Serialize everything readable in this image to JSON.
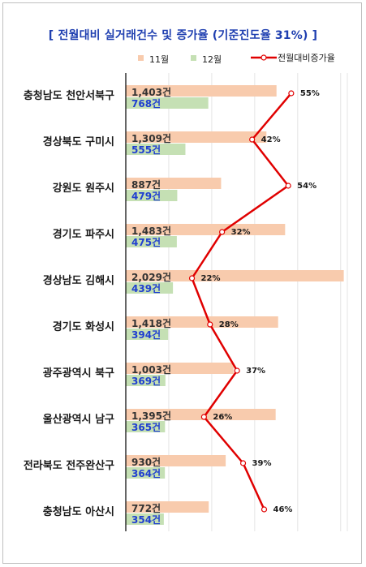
{
  "title": "[ 전월대비 실거래건수 및 증가율 (기준진도율 31%) ]",
  "colors": {
    "bar11": "#f8cbad",
    "bar12": "#c5e0b4",
    "line": "#e00000",
    "title": "#1f3fb0",
    "label12": "#1f3fd0"
  },
  "chart_data": {
    "type": "bar",
    "title": "[ 전월대비 실거래건수 및 증가율 (기준진도율 31%) ]",
    "orientation": "horizontal",
    "categories": [
      "충청남도 천안서북구",
      "경상북도 구미시",
      "강원도 원주시",
      "경기도 파주시",
      "경상남도 김해시",
      "경기도 화성시",
      "광주광역시 북구",
      "울산광역시 남구",
      "전라북도 전주완산구",
      "충청남도 아산시"
    ],
    "series": [
      {
        "name": "11월",
        "values": [
          1403,
          1309,
          887,
          1483,
          2029,
          1418,
          1003,
          1395,
          930,
          772
        ],
        "labels": [
          "1,403건",
          "1,309건",
          "887건",
          "1,483건",
          "2,029건",
          "1,418건",
          "1,003건",
          "1,395건",
          "930건",
          "772건"
        ]
      },
      {
        "name": "12월",
        "values": [
          768,
          555,
          479,
          475,
          439,
          394,
          369,
          365,
          364,
          354
        ],
        "labels": [
          "768건",
          "555건",
          "479건",
          "475건",
          "439건",
          "394건",
          "369건",
          "365건",
          "364건",
          "354건"
        ]
      },
      {
        "name": "전월대비증가율",
        "type": "line",
        "values": [
          55,
          42,
          54,
          32,
          22,
          28,
          37,
          26,
          39,
          46
        ],
        "labels": [
          "55%",
          "42%",
          "54%",
          "32%",
          "22%",
          "28%",
          "37%",
          "26%",
          "39%",
          "46%"
        ]
      }
    ],
    "xlim": [
      0,
      2100
    ],
    "line_xlim": [
      0,
      75
    ],
    "grid": true,
    "legend": "top"
  }
}
